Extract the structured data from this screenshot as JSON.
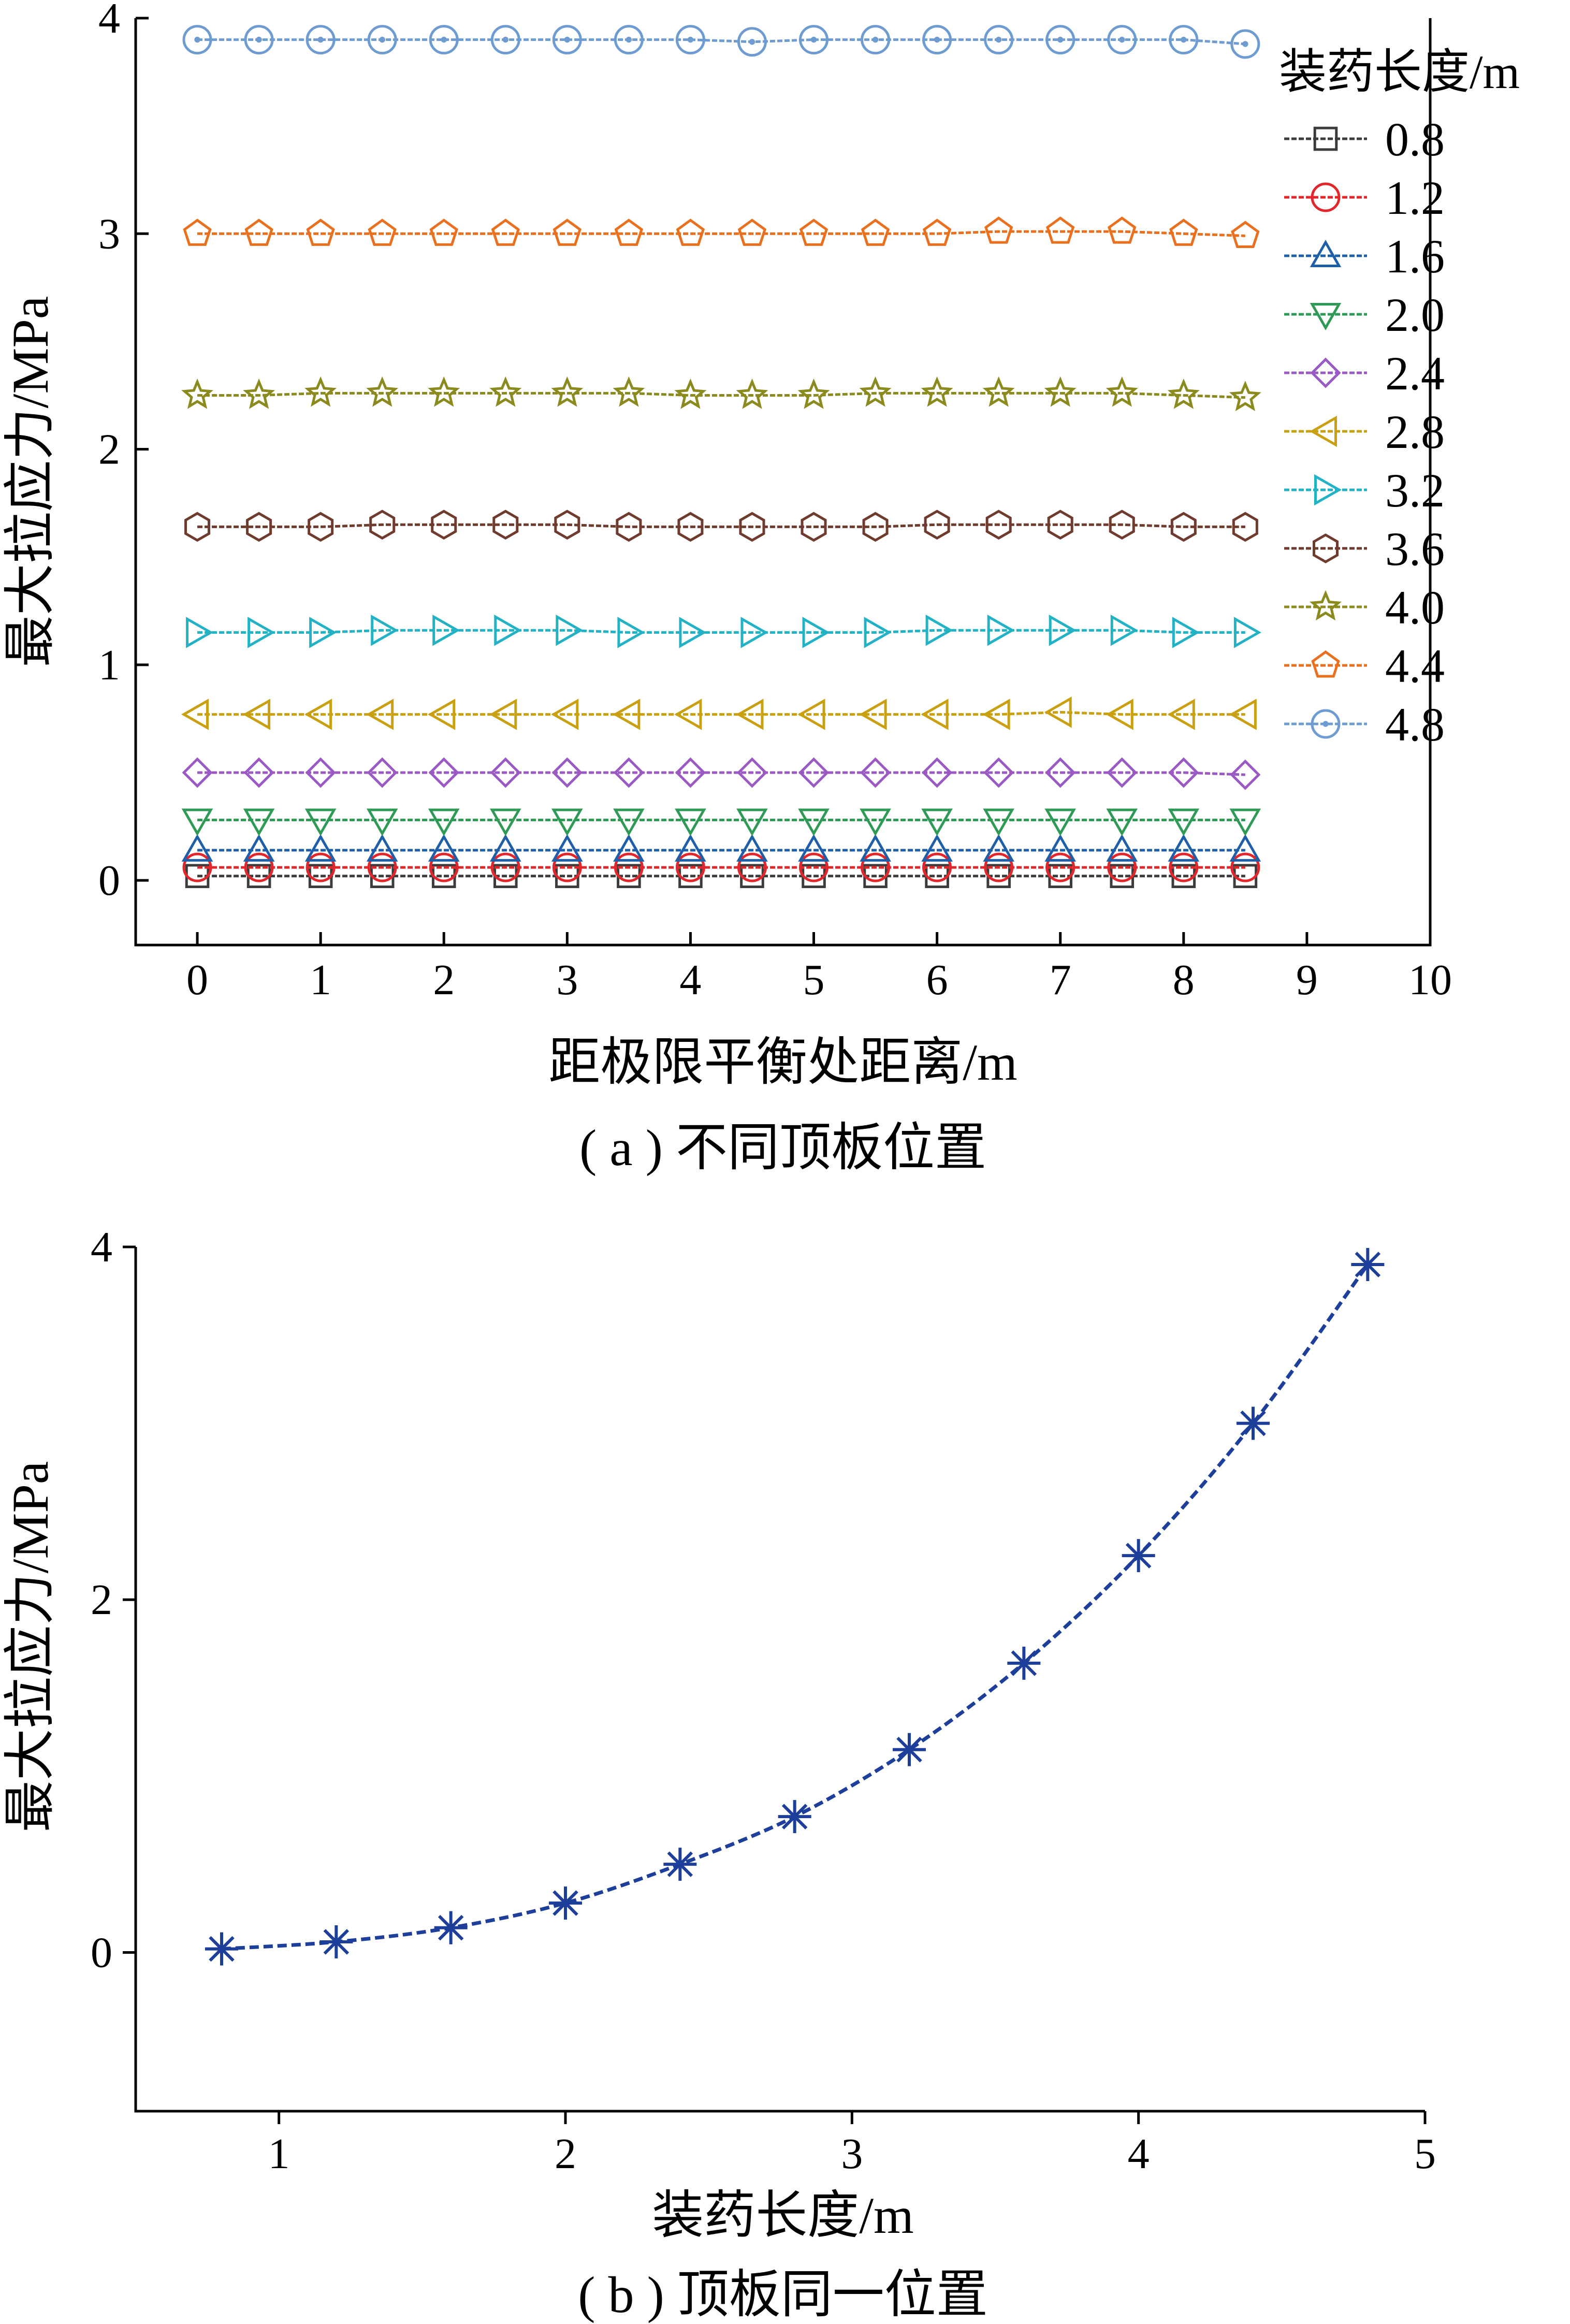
{
  "chart_data": [
    {
      "type": "line",
      "caption": "( a ) 不同顶板位置",
      "xlabel": "距极限平衡处距离/m",
      "ylabel": "最大拉应力/MPa",
      "xlim": [
        -0.5,
        10
      ],
      "ylim": [
        -0.3,
        4
      ],
      "xticks": [
        "0",
        "1",
        "2",
        "3",
        "4",
        "5",
        "6",
        "7",
        "8",
        "9",
        "10"
      ],
      "yticks": [
        "0",
        "1",
        "2",
        "3",
        "4"
      ],
      "legend_title": "装药长度/m",
      "legend_position": "right",
      "x": [
        0,
        0.5,
        1,
        1.5,
        2,
        2.5,
        3,
        3.5,
        4,
        4.5,
        5,
        5.5,
        6,
        6.5,
        7,
        7.5,
        8,
        8.5
      ],
      "series": [
        {
          "name": "0.8",
          "marker": "square",
          "color": "#3c3c3c",
          "values": [
            0.02,
            0.02,
            0.02,
            0.02,
            0.02,
            0.02,
            0.02,
            0.02,
            0.02,
            0.02,
            0.02,
            0.02,
            0.02,
            0.02,
            0.02,
            0.02,
            0.02,
            0.02
          ]
        },
        {
          "name": "1.2",
          "marker": "circle",
          "color": "#e2272c",
          "values": [
            0.06,
            0.06,
            0.06,
            0.06,
            0.06,
            0.06,
            0.06,
            0.06,
            0.06,
            0.06,
            0.06,
            0.06,
            0.06,
            0.06,
            0.06,
            0.06,
            0.06,
            0.06
          ]
        },
        {
          "name": "1.6",
          "marker": "triangle-up",
          "color": "#1f5fa8",
          "values": [
            0.14,
            0.14,
            0.14,
            0.14,
            0.14,
            0.14,
            0.14,
            0.14,
            0.14,
            0.14,
            0.14,
            0.14,
            0.14,
            0.14,
            0.14,
            0.14,
            0.14,
            0.14
          ]
        },
        {
          "name": "2.0",
          "marker": "triangle-down",
          "color": "#2f9a55",
          "values": [
            0.28,
            0.28,
            0.28,
            0.28,
            0.28,
            0.28,
            0.28,
            0.28,
            0.28,
            0.28,
            0.28,
            0.28,
            0.28,
            0.28,
            0.28,
            0.28,
            0.28,
            0.28
          ]
        },
        {
          "name": "2.4",
          "marker": "diamond",
          "color": "#9b59c4",
          "values": [
            0.5,
            0.5,
            0.5,
            0.5,
            0.5,
            0.5,
            0.5,
            0.5,
            0.5,
            0.5,
            0.5,
            0.5,
            0.5,
            0.5,
            0.5,
            0.5,
            0.5,
            0.49
          ]
        },
        {
          "name": "2.8",
          "marker": "triangle-left",
          "color": "#c8a011",
          "values": [
            0.77,
            0.77,
            0.77,
            0.77,
            0.77,
            0.77,
            0.77,
            0.77,
            0.77,
            0.77,
            0.77,
            0.77,
            0.77,
            0.77,
            0.78,
            0.77,
            0.77,
            0.77
          ]
        },
        {
          "name": "3.2",
          "marker": "triangle-right",
          "color": "#22b2c4",
          "values": [
            1.15,
            1.15,
            1.15,
            1.16,
            1.16,
            1.16,
            1.16,
            1.15,
            1.15,
            1.15,
            1.15,
            1.15,
            1.16,
            1.16,
            1.16,
            1.16,
            1.15,
            1.15
          ]
        },
        {
          "name": "3.6",
          "marker": "hexagon",
          "color": "#6e3b2e",
          "values": [
            1.64,
            1.64,
            1.64,
            1.65,
            1.65,
            1.65,
            1.65,
            1.64,
            1.64,
            1.64,
            1.64,
            1.64,
            1.65,
            1.65,
            1.65,
            1.65,
            1.64,
            1.64
          ]
        },
        {
          "name": "4.0",
          "marker": "star",
          "color": "#8a8a1e",
          "values": [
            2.25,
            2.25,
            2.26,
            2.26,
            2.26,
            2.26,
            2.26,
            2.26,
            2.25,
            2.25,
            2.25,
            2.26,
            2.26,
            2.26,
            2.26,
            2.26,
            2.25,
            2.24
          ]
        },
        {
          "name": "4.4",
          "marker": "pentagon",
          "color": "#e8701e",
          "values": [
            3.0,
            3.0,
            3.0,
            3.0,
            3.0,
            3.0,
            3.0,
            3.0,
            3.0,
            3.0,
            3.0,
            3.0,
            3.0,
            3.01,
            3.01,
            3.01,
            3.0,
            2.99
          ]
        },
        {
          "name": "4.8",
          "marker": "circle-dot",
          "color": "#6e9cd0",
          "values": [
            3.9,
            3.9,
            3.9,
            3.9,
            3.9,
            3.9,
            3.9,
            3.9,
            3.9,
            3.89,
            3.9,
            3.9,
            3.9,
            3.9,
            3.9,
            3.9,
            3.9,
            3.88
          ]
        }
      ]
    },
    {
      "type": "line",
      "caption": "( b ) 顶板同一位置",
      "xlabel": "装药长度/m",
      "ylabel": "最大拉应力/MPa",
      "xlim": [
        0.5,
        5
      ],
      "ylim": [
        -0.9,
        4
      ],
      "xticks": [
        "1",
        "2",
        "3",
        "4",
        "5"
      ],
      "yticks": [
        "0",
        "2",
        "4"
      ],
      "series": [
        {
          "marker": "asterisk",
          "color": "#1d3f9a",
          "x": [
            0.8,
            1.2,
            1.6,
            2.0,
            2.4,
            2.8,
            3.2,
            3.6,
            4.0,
            4.4,
            4.8
          ],
          "values": [
            0.02,
            0.06,
            0.14,
            0.28,
            0.5,
            0.77,
            1.15,
            1.64,
            2.25,
            3.0,
            3.9
          ]
        }
      ]
    }
  ]
}
